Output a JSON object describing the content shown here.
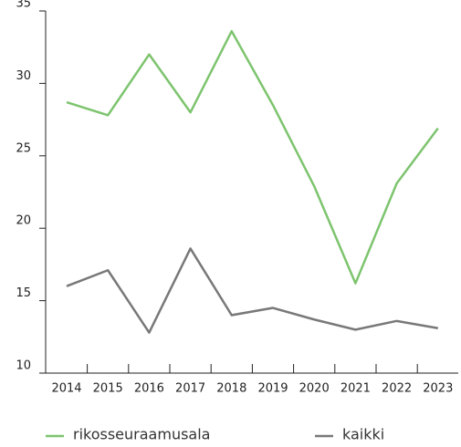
{
  "chart_data": {
    "type": "line",
    "categories": [
      "2014",
      "2015",
      "2016",
      "2017",
      "2018",
      "2019",
      "2020",
      "2021",
      "2022",
      "2023"
    ],
    "series": [
      {
        "name": "rikosseuraamusala",
        "color": "#7dc46e",
        "values": [
          28.7,
          27.8,
          32.0,
          28.0,
          33.6,
          28.5,
          22.9,
          16.2,
          23.1,
          26.9
        ]
      },
      {
        "name": "kaikki",
        "color": "#78787a",
        "values": [
          16.0,
          17.1,
          12.8,
          18.6,
          14.0,
          14.5,
          13.7,
          13.0,
          13.6,
          13.1
        ]
      }
    ],
    "ylim": [
      10,
      35
    ],
    "yticks": [
      10,
      15,
      20,
      25,
      30,
      35
    ],
    "grid": false,
    "legend": "bottom"
  }
}
